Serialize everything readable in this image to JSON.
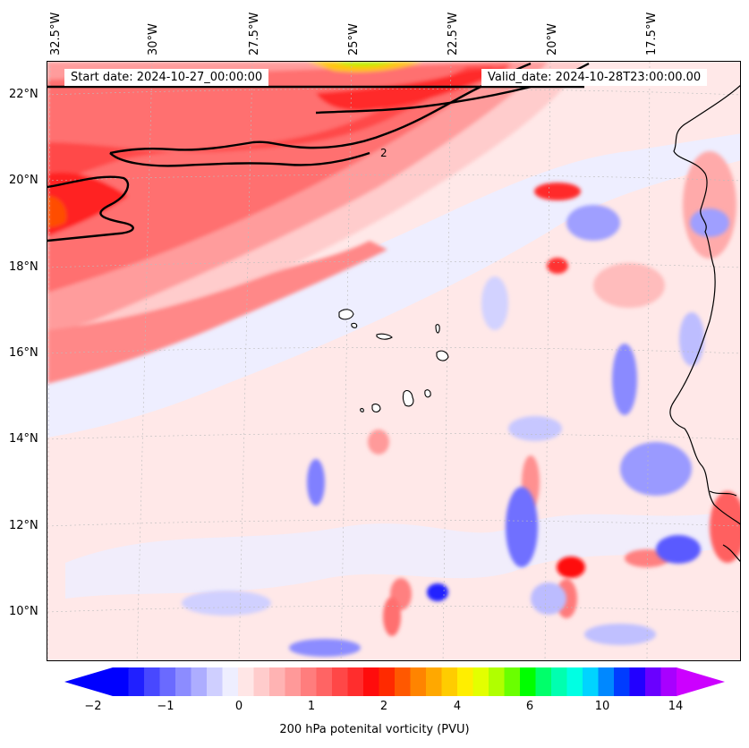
{
  "header": {
    "start_date": "Start date: 2024-10-27_00:00:00",
    "valid_date": "Valid_date: 2024-10-28T23:00:00.00"
  },
  "axes": {
    "lon_labels": [
      "32.5°W",
      "30°W",
      "27.5°W",
      "25°W",
      "22.5°W",
      "20°W",
      "17.5°W"
    ],
    "lat_labels": [
      "22°N",
      "20°N",
      "18°N",
      "16°N",
      "14°N",
      "12°N",
      "10°N"
    ]
  },
  "contour_label": "2",
  "colorbar": {
    "label": "200 hPa potenital vorticity (PVU)",
    "tick_labels": [
      "−2",
      "−1",
      "0",
      "1",
      "2",
      "4",
      "6",
      "10",
      "14"
    ],
    "colors": [
      "#0000ff",
      "#2020ff",
      "#4848ff",
      "#6a6aff",
      "#8c8cff",
      "#adadff",
      "#cfcfff",
      "#eeeeff",
      "#ffe6e6",
      "#ffcccc",
      "#ffb3b3",
      "#ff9999",
      "#ff7d7d",
      "#ff6464",
      "#ff4747",
      "#ff2d2d",
      "#ff0c0c",
      "#ff2a00",
      "#ff5800",
      "#ff8400",
      "#ffa800",
      "#ffcc00",
      "#ffee00",
      "#e3ff00",
      "#b0ff00",
      "#6aff00",
      "#00ff00",
      "#00ff6a",
      "#00ffb0",
      "#00ffe3",
      "#00d4ff",
      "#0088ff",
      "#003cff",
      "#2200ff",
      "#6a00ff",
      "#a800ff"
    ],
    "under_color": "#0000ff",
    "over_color": "#cc00ff"
  },
  "colors": {
    "background": "#ffeaea",
    "weak_pos": "#ffd2d2",
    "mod_pos": "#ff9f9f",
    "strong_pos": "#ff5c5c",
    "very_strong": "#ff2c2c",
    "neg_light": "#dcdcff",
    "neg_mid": "#9f9fff",
    "neg_strong": "#5050ff"
  }
}
